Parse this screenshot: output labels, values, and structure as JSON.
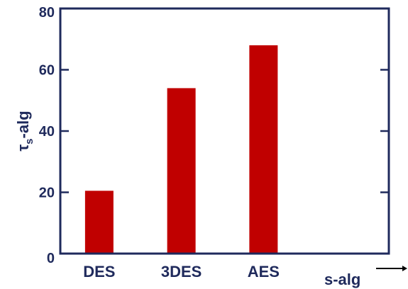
{
  "chart_data": {
    "type": "bar",
    "categories": [
      "DES",
      "3DES",
      "AES",
      ""
    ],
    "values": [
      20.5,
      54,
      68,
      null
    ],
    "xlabel": "s-alg",
    "ylabel": {
      "main": "τ",
      "sub": "s",
      "suffix": "-alg"
    },
    "ylim": [
      0,
      80
    ],
    "yticks": [
      "0",
      "20",
      "40",
      "60",
      "80"
    ],
    "grid": false,
    "legend": "none",
    "colors": {
      "bar": "#c00000",
      "axis": "#1f2a5c",
      "text": "#1f2a5c"
    }
  }
}
